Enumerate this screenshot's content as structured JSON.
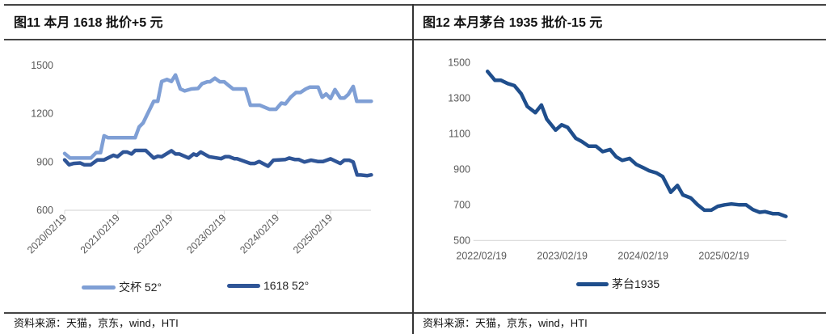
{
  "left": {
    "title": "图11 本月 1618 批价+5 元",
    "source": "资料来源：天猫，京东，wind，HTI"
  },
  "right": {
    "title": "图12 本月茅台 1935 批价-15 元",
    "source": "资料来源：天猫，京东，wind，HTI"
  },
  "chart_data": [
    {
      "type": "line",
      "title": "图11 本月 1618 批价+5 元",
      "x_unit": "months since 2020/02/19",
      "ylim": [
        600,
        1500
      ],
      "yticks": [
        600,
        900,
        1200,
        1500
      ],
      "xtick_labels": [
        "2020/02/19",
        "2021/02/19",
        "2022/02/19",
        "2023/02/19",
        "2024/02/19",
        "2025/02/19"
      ],
      "xtick_months": [
        0,
        12,
        24,
        36,
        48,
        60
      ],
      "xmax": 69.2,
      "legend_placement": "bottom",
      "series": [
        {
          "name": "交杯 52°",
          "color": "#7F9FD5",
          "x": [
            0,
            1.2,
            5.9,
            7.1,
            8.1,
            8.9,
            9.8,
            15.9,
            16.8,
            17.7,
            18.6,
            20.1,
            21.0,
            21.9,
            23.1,
            24.1,
            25.0,
            26.1,
            27.1,
            28.6,
            30.1,
            31.0,
            32.2,
            32.8,
            33.9,
            35.0,
            36.0,
            37.0,
            38.0,
            40.8,
            41.9,
            44.0,
            46.2,
            47.7,
            48.9,
            49.8,
            51.0,
            52.2,
            53.2,
            54.4,
            55.3,
            57.2,
            58.1,
            59.0,
            60.0,
            61.0,
            62.2,
            63.1,
            64.0,
            65.1,
            65.9,
            69.2
          ],
          "y": [
            953,
            925,
            925,
            958,
            958,
            1063,
            1051,
            1051,
            1118,
            1143,
            1194,
            1278,
            1278,
            1401,
            1413,
            1401,
            1441,
            1354,
            1342,
            1354,
            1357,
            1387,
            1399,
            1399,
            1421,
            1399,
            1399,
            1376,
            1354,
            1354,
            1253,
            1253,
            1228,
            1228,
            1266,
            1261,
            1303,
            1332,
            1332,
            1354,
            1365,
            1365,
            1303,
            1323,
            1295,
            1350,
            1298,
            1298,
            1320,
            1370,
            1278,
            1278
          ]
        },
        {
          "name": "1618 52°",
          "color": "#2F5597",
          "x": [
            0,
            1.0,
            2,
            3.5,
            4.4,
            5.9,
            7.4,
            8.9,
            11.0,
            11.9,
            13.2,
            14.1,
            15.1,
            15.9,
            18.3,
            20.1,
            21.0,
            21.9,
            24.1,
            25.0,
            25.9,
            28.0,
            29.1,
            29.8,
            30.7,
            32.6,
            35.3,
            36.2,
            37.1,
            38.3,
            38.9,
            41.9,
            42.9,
            43.9,
            45.9,
            47.1,
            49.8,
            50.7,
            51.9,
            52.8,
            54.1,
            55.6,
            57.1,
            58.3,
            60.0,
            62.2,
            63.1,
            64.2,
            65.1,
            66.0,
            66.8,
            68.3,
            69.2
          ],
          "y": [
            913,
            883,
            891,
            894,
            883,
            883,
            913,
            913,
            942,
            933,
            962,
            962,
            950,
            972,
            972,
            925,
            936,
            933,
            970,
            950,
            950,
            925,
            950,
            942,
            962,
            933,
            921,
            933,
            933,
            921,
            921,
            891,
            891,
            903,
            874,
            911,
            916,
            925,
            916,
            916,
            900,
            911,
            903,
            903,
            920,
            891,
            911,
            911,
            900,
            819,
            819,
            815,
            820
          ]
        }
      ]
    },
    {
      "type": "line",
      "title": "图12 本月茅台 1935 批价-15 元",
      "x_unit": "months since 2022/02/19",
      "ylim": [
        500,
        1500
      ],
      "yticks": [
        500,
        700,
        900,
        1100,
        1300,
        1500
      ],
      "xtick_labels": [
        "2022/02/19",
        "2023/02/19",
        "2024/02/19",
        "2025/02/19"
      ],
      "xtick_months": [
        0,
        12,
        24,
        36
      ],
      "xmax": 45.2,
      "legend_placement": "bottom",
      "series": [
        {
          "name": "茅台1935",
          "color": "#1F4E8C",
          "x": [
            0.9,
            2.0,
            2.9,
            3.9,
            4.9,
            5.9,
            6.8,
            8.0,
            8.9,
            9.7,
            11.0,
            11.9,
            12.8,
            14.0,
            14.9,
            15.9,
            17.0,
            18.0,
            19.1,
            20.0,
            20.9,
            22.0,
            23.0,
            24.0,
            24.9,
            26.0,
            26.9,
            28.1,
            29.1,
            29.9,
            31.1,
            32.1,
            33.1,
            34.1,
            35.1,
            36.1,
            37.1,
            38.3,
            39.3,
            40.3,
            41.3,
            42.1,
            43.3,
            44.1,
            45.2
          ],
          "y": [
            1450,
            1400,
            1400,
            1382,
            1370,
            1324,
            1253,
            1218,
            1261,
            1182,
            1120,
            1150,
            1135,
            1074,
            1056,
            1030,
            1030,
            999,
            1011,
            970,
            950,
            961,
            927,
            909,
            892,
            879,
            859,
            771,
            809,
            756,
            738,
            700,
            670,
            670,
            692,
            700,
            705,
            700,
            700,
            673,
            658,
            662,
            650,
            650,
            635
          ]
        }
      ]
    }
  ]
}
